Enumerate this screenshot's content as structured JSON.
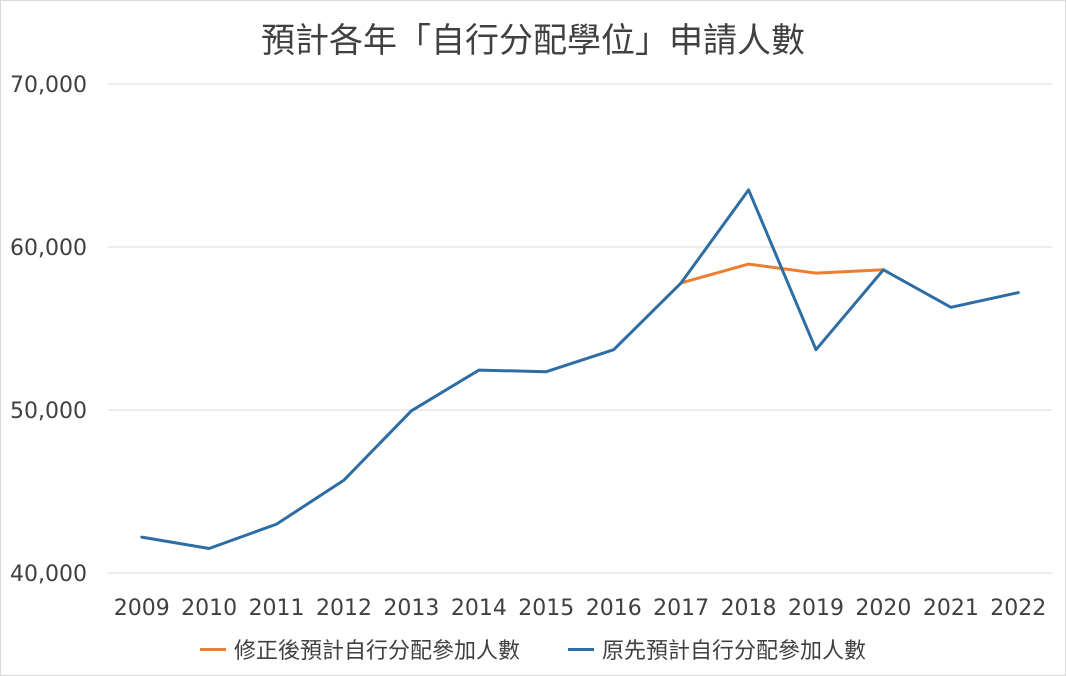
{
  "chart_data": {
    "type": "line",
    "title": "預計各年「自行分配學位」申請人數",
    "xlabel": "",
    "ylabel": "",
    "x": [
      "2009",
      "2010",
      "2011",
      "2012",
      "2013",
      "2014",
      "2015",
      "2016",
      "2017",
      "2018",
      "2019",
      "2020",
      "2021",
      "2022"
    ],
    "ylim": [
      40000,
      70000
    ],
    "yticks": [
      40000,
      50000,
      60000,
      70000
    ],
    "ytick_labels": [
      "40,000",
      "50,000",
      "60,000",
      "70,000"
    ],
    "grid": true,
    "legend_position": "bottom",
    "series": [
      {
        "name": "修正後預計自行分配參加人數",
        "color": "#ED7D31",
        "values": [
          null,
          null,
          null,
          null,
          null,
          null,
          null,
          null,
          57800,
          58950,
          58400,
          58600,
          null,
          null
        ]
      },
      {
        "name": "原先預計自行分配參加人數",
        "color": "#2E6DA4",
        "values": [
          42200,
          41500,
          43000,
          45700,
          49950,
          52450,
          52350,
          53700,
          57800,
          63500,
          53700,
          58600,
          56300,
          57200
        ]
      }
    ]
  }
}
